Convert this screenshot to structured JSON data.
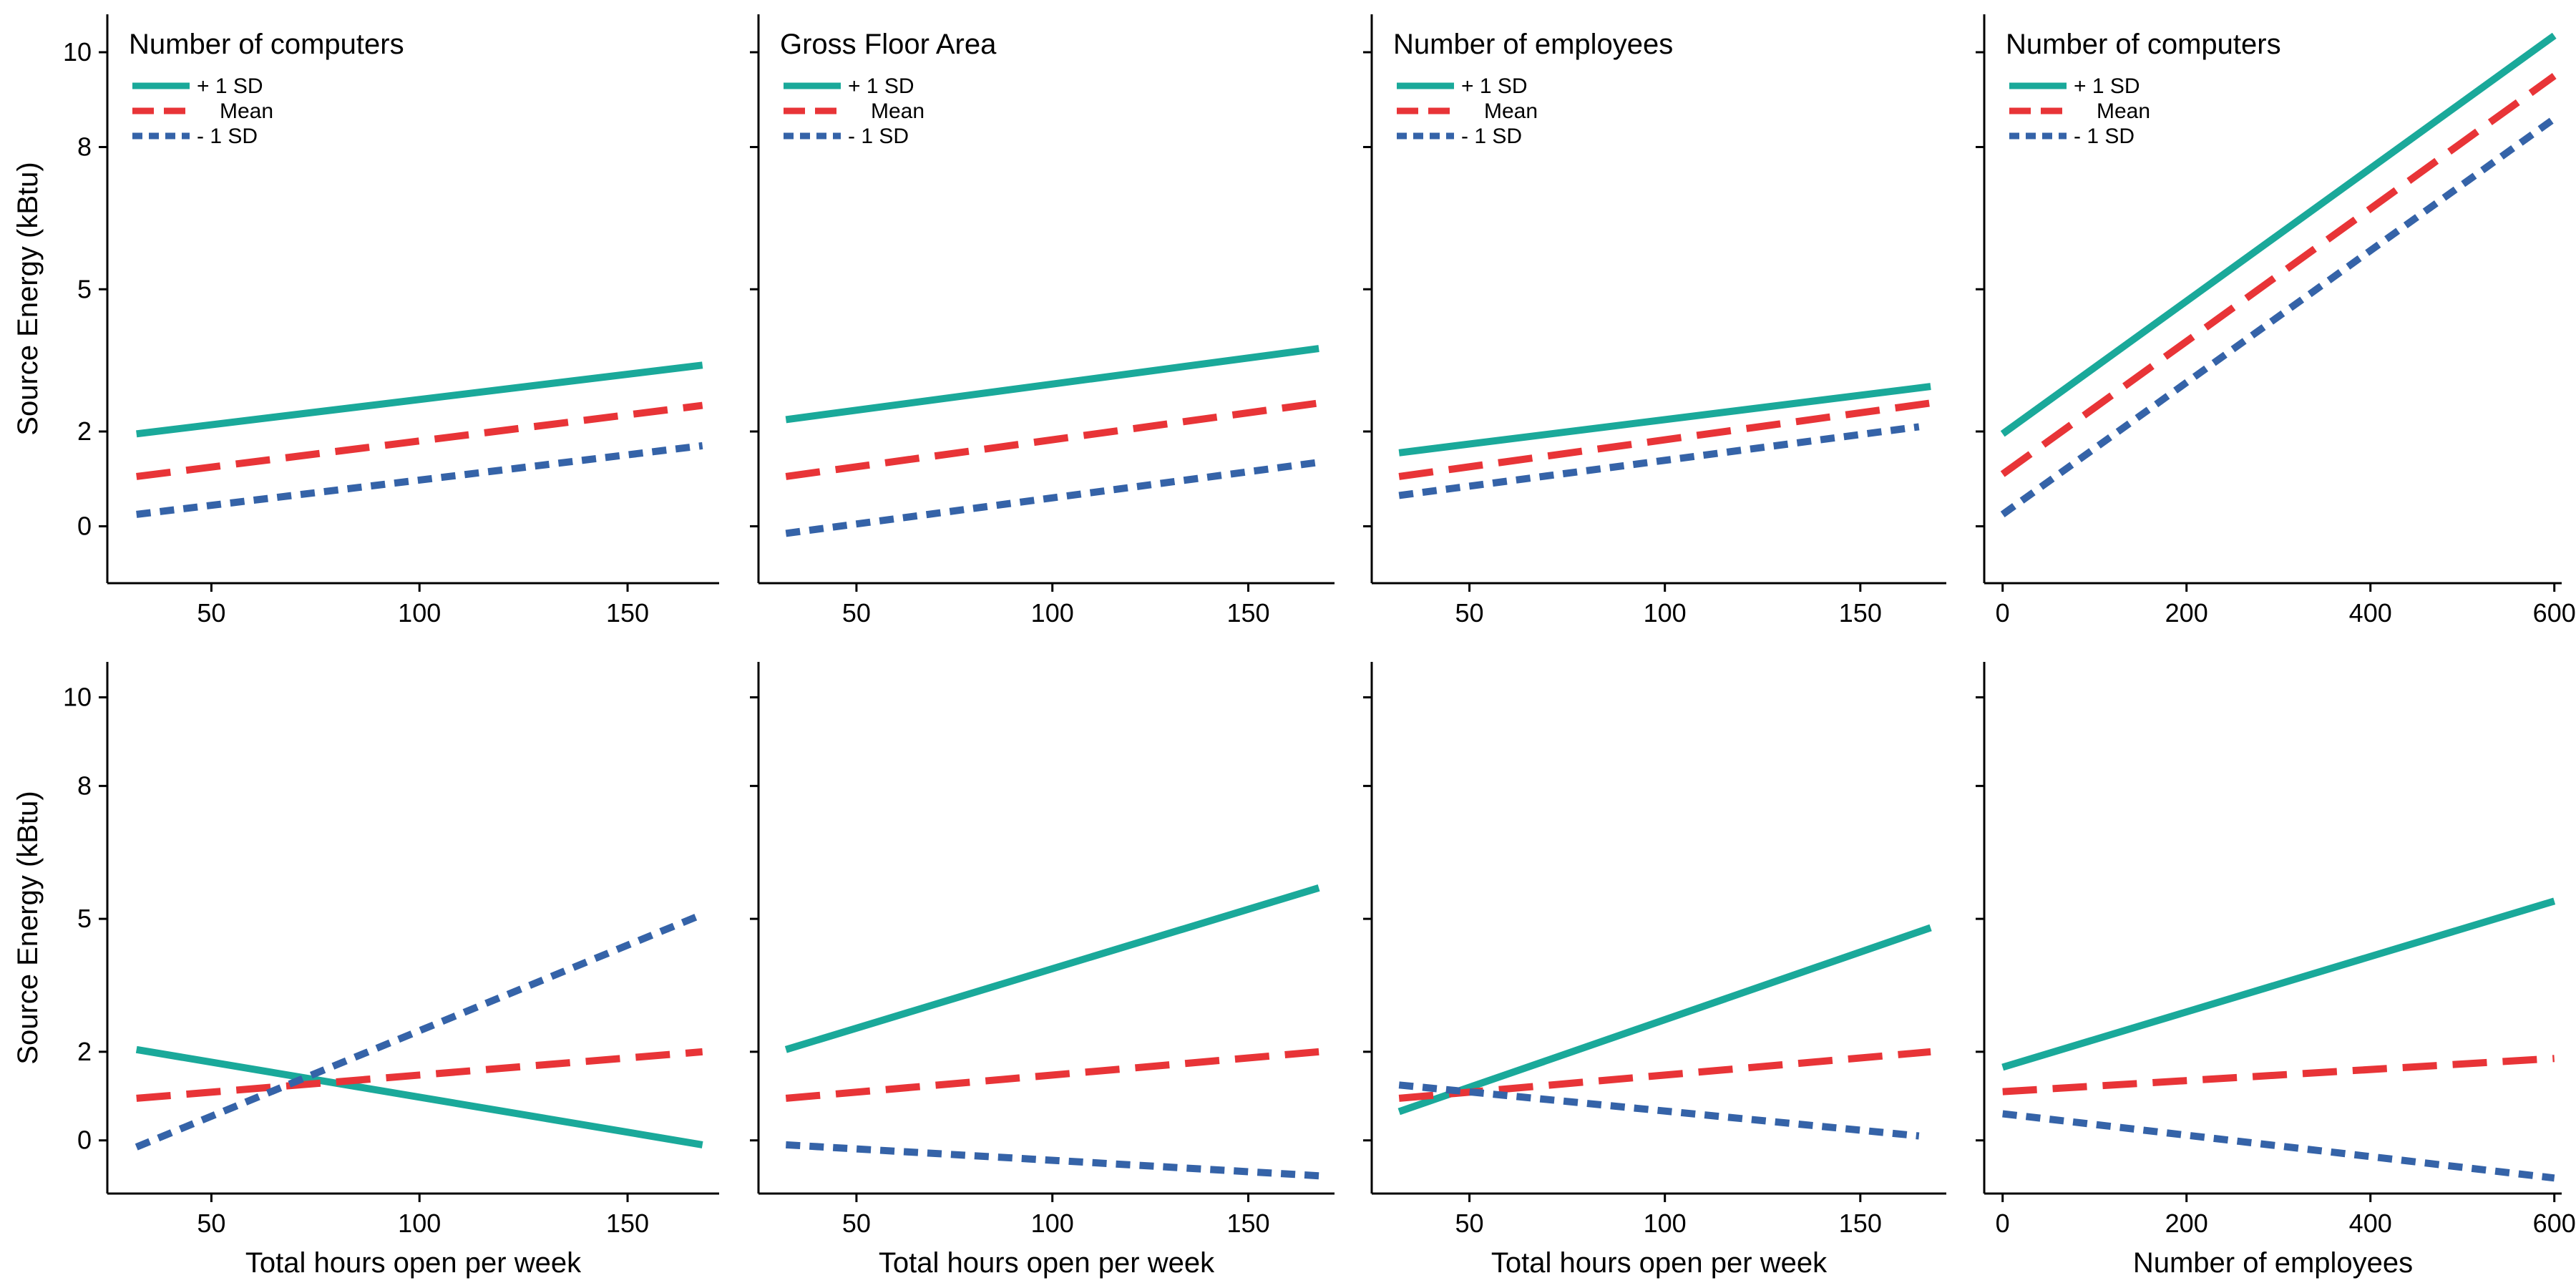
{
  "colors": {
    "plus_sd": "#1aa99a",
    "mean": "#e83437",
    "minus_sd": "#3563a8"
  },
  "y_axis": {
    "label": "Source Energy (kBtu)",
    "ticks": [
      0,
      2,
      5,
      8,
      10
    ]
  },
  "chart_data": [
    {
      "type": "line",
      "row": 0,
      "col": 0,
      "title": "Number of computers",
      "xlabel": "",
      "ylabel": "Source Energy (kBtu)",
      "x_ticks": [
        50,
        100,
        150
      ],
      "xlim": [
        25,
        172
      ],
      "ylim": [
        -1.2,
        10.8
      ],
      "legend": "top-left",
      "series": [
        {
          "name": "+ 1 SD",
          "x": [
            32,
            168
          ],
          "y": [
            1.95,
            3.4
          ]
        },
        {
          "name": "Mean",
          "x": [
            32,
            168
          ],
          "y": [
            1.05,
            2.55
          ]
        },
        {
          "name": "- 1 SD",
          "x": [
            32,
            168
          ],
          "y": [
            0.25,
            1.7
          ]
        }
      ]
    },
    {
      "type": "line",
      "row": 0,
      "col": 1,
      "title": "Gross Floor Area",
      "xlabel": "",
      "ylabel": "",
      "x_ticks": [
        50,
        100,
        150
      ],
      "xlim": [
        25,
        172
      ],
      "ylim": [
        -1.2,
        10.8
      ],
      "legend": "top-left",
      "series": [
        {
          "name": "+ 1 SD",
          "x": [
            32,
            168
          ],
          "y": [
            2.25,
            3.75
          ]
        },
        {
          "name": "Mean",
          "x": [
            32,
            168
          ],
          "y": [
            1.05,
            2.6
          ]
        },
        {
          "name": "- 1 SD",
          "x": [
            32,
            168
          ],
          "y": [
            -0.15,
            1.35
          ]
        }
      ]
    },
    {
      "type": "line",
      "row": 0,
      "col": 2,
      "title": "Number of employees",
      "xlabel": "",
      "ylabel": "",
      "x_ticks": [
        50,
        100,
        150
      ],
      "xlim": [
        25,
        172
      ],
      "ylim": [
        -1.2,
        10.8
      ],
      "legend": "top-left",
      "series": [
        {
          "name": "+ 1 SD",
          "x": [
            32,
            168
          ],
          "y": [
            1.55,
            2.95
          ]
        },
        {
          "name": "Mean",
          "x": [
            32,
            168
          ],
          "y": [
            1.05,
            2.6
          ]
        },
        {
          "name": "- 1 SD",
          "x": [
            32,
            165
          ],
          "y": [
            0.65,
            2.1
          ]
        }
      ]
    },
    {
      "type": "line",
      "row": 0,
      "col": 3,
      "title": "Number of computers",
      "xlabel": "",
      "ylabel": "",
      "x_ticks": [
        0,
        200,
        400,
        600
      ],
      "xlim": [
        -20,
        608
      ],
      "ylim": [
        -1.2,
        10.8
      ],
      "legend": "top-left",
      "series": [
        {
          "name": "+ 1 SD",
          "x": [
            0,
            600
          ],
          "y": [
            1.95,
            10.35
          ]
        },
        {
          "name": "Mean",
          "x": [
            0,
            600
          ],
          "y": [
            1.1,
            9.5
          ]
        },
        {
          "name": "- 1 SD",
          "x": [
            0,
            600
          ],
          "y": [
            0.25,
            8.6
          ]
        }
      ]
    },
    {
      "type": "line",
      "row": 1,
      "col": 0,
      "title": "",
      "xlabel": "Total hours open per week",
      "ylabel": "Source Energy (kBtu)",
      "x_ticks": [
        50,
        100,
        150
      ],
      "xlim": [
        25,
        172
      ],
      "ylim": [
        -1.2,
        10.8
      ],
      "legend": "none",
      "series": [
        {
          "name": "",
          "x": [
            32,
            168
          ],
          "y": [
            2.05,
            -0.1
          ]
        },
        {
          "name": "",
          "x": [
            32,
            168
          ],
          "y": [
            0.95,
            2.0
          ]
        },
        {
          "name": "",
          "x": [
            32,
            168
          ],
          "y": [
            -0.15,
            5.1
          ]
        }
      ]
    },
    {
      "type": "line",
      "row": 1,
      "col": 1,
      "title": "",
      "xlabel": "Total hours open per week",
      "ylabel": "",
      "x_ticks": [
        50,
        100,
        150
      ],
      "xlim": [
        25,
        172
      ],
      "ylim": [
        -1.2,
        10.8
      ],
      "legend": "none",
      "series": [
        {
          "name": "",
          "x": [
            32,
            168
          ],
          "y": [
            2.05,
            5.7
          ]
        },
        {
          "name": "",
          "x": [
            32,
            168
          ],
          "y": [
            0.95,
            2.0
          ]
        },
        {
          "name": "",
          "x": [
            32,
            168
          ],
          "y": [
            -0.1,
            -0.8
          ]
        }
      ]
    },
    {
      "type": "line",
      "row": 1,
      "col": 2,
      "title": "",
      "xlabel": "Total hours open per week",
      "ylabel": "",
      "x_ticks": [
        50,
        100,
        150
      ],
      "xlim": [
        25,
        172
      ],
      "ylim": [
        -1.2,
        10.8
      ],
      "legend": "none",
      "series": [
        {
          "name": "",
          "x": [
            32,
            168
          ],
          "y": [
            0.65,
            4.8
          ]
        },
        {
          "name": "",
          "x": [
            32,
            168
          ],
          "y": [
            0.95,
            2.0
          ]
        },
        {
          "name": "",
          "x": [
            32,
            165
          ],
          "y": [
            1.25,
            0.1
          ]
        }
      ]
    },
    {
      "type": "line",
      "row": 1,
      "col": 3,
      "title": "",
      "xlabel": "Number of employees",
      "ylabel": "",
      "x_ticks": [
        0,
        200,
        400,
        600
      ],
      "xlim": [
        -20,
        608
      ],
      "ylim": [
        -1.2,
        10.8
      ],
      "legend": "none",
      "series": [
        {
          "name": "",
          "x": [
            0,
            600
          ],
          "y": [
            1.65,
            5.4
          ]
        },
        {
          "name": "",
          "x": [
            0,
            600
          ],
          "y": [
            1.1,
            1.85
          ]
        },
        {
          "name": "",
          "x": [
            0,
            600
          ],
          "y": [
            0.6,
            -0.85
          ]
        }
      ]
    }
  ]
}
